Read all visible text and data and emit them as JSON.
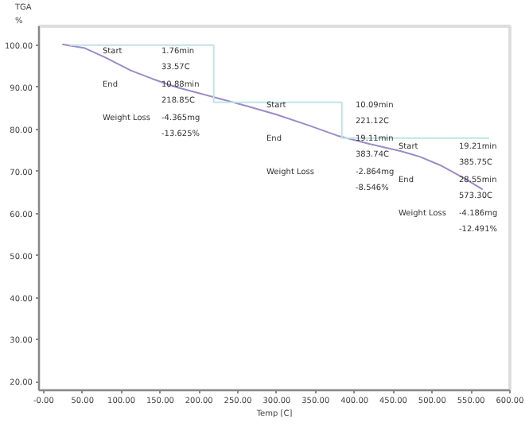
{
  "chart_data": {
    "type": "line",
    "ylabel": "TGA\n%",
    "xlabel": "Temp [C]",
    "xlim": [
      -6,
      600
    ],
    "ylim": [
      18,
      104.5
    ],
    "xticks": [
      {
        "value": 0,
        "label": "-0.00"
      },
      {
        "value": 50,
        "label": "50.00"
      },
      {
        "value": 100,
        "label": "100.00"
      },
      {
        "value": 150,
        "label": "150.00"
      },
      {
        "value": 200,
        "label": "200.00"
      },
      {
        "value": 250,
        "label": "250.00"
      },
      {
        "value": 300,
        "label": "300.00"
      },
      {
        "value": 350,
        "label": "350.00"
      },
      {
        "value": 400,
        "label": "400.00"
      },
      {
        "value": 450,
        "label": "450.00"
      },
      {
        "value": 500,
        "label": "500.00"
      },
      {
        "value": 550,
        "label": "550.00"
      },
      {
        "value": 600,
        "label": "600.00"
      }
    ],
    "yticks": [
      {
        "value": 20,
        "label": "20.00"
      },
      {
        "value": 30,
        "label": "30.00"
      },
      {
        "value": 40,
        "label": "40.00"
      },
      {
        "value": 50,
        "label": "50.00"
      },
      {
        "value": 60,
        "label": "60.00"
      },
      {
        "value": 70,
        "label": "70.00"
      },
      {
        "value": 80,
        "label": "80.00"
      },
      {
        "value": 90,
        "label": "90.00"
      },
      {
        "value": 100,
        "label": "100.00"
      }
    ],
    "grid": false,
    "series": [
      {
        "color": "#9a8cc8",
        "x": [
          24,
          53,
          80,
          112,
          140,
          171,
          200,
          222,
          260,
          300,
          340,
          378,
          420,
          460,
          484,
          510,
          540,
          565
        ],
        "values": [
          100.2,
          99.3,
          97.0,
          94.0,
          92.0,
          90.0,
          88.6,
          87.5,
          85.6,
          83.5,
          81.0,
          78.5,
          76.5,
          74.8,
          73.5,
          71.5,
          68.5,
          65.7
        ]
      },
      {
        "type": "step",
        "color": "#bfe3e8",
        "x": [
          33.57,
          218.85,
          383.74,
          573.3
        ],
        "values": [
          100,
          86.4,
          77.9,
          77.9
        ]
      }
    ],
    "annotations": [
      "Start",
      "1.76min",
      "33.57C",
      "End",
      "10.88min",
      "218.85C",
      "Weight Loss",
      "-4.365mg",
      "-13.625%",
      "Start",
      "10.09min",
      "221.12C",
      "End",
      "19.11min",
      "383.74C",
      "Weight Loss",
      "-2.864mg",
      "-8.546%",
      "Start",
      "19.21min",
      "385.75C",
      "End",
      "28.55min",
      "573.30C",
      "Weight Loss",
      "-4.186mg",
      "-12.491%"
    ]
  }
}
